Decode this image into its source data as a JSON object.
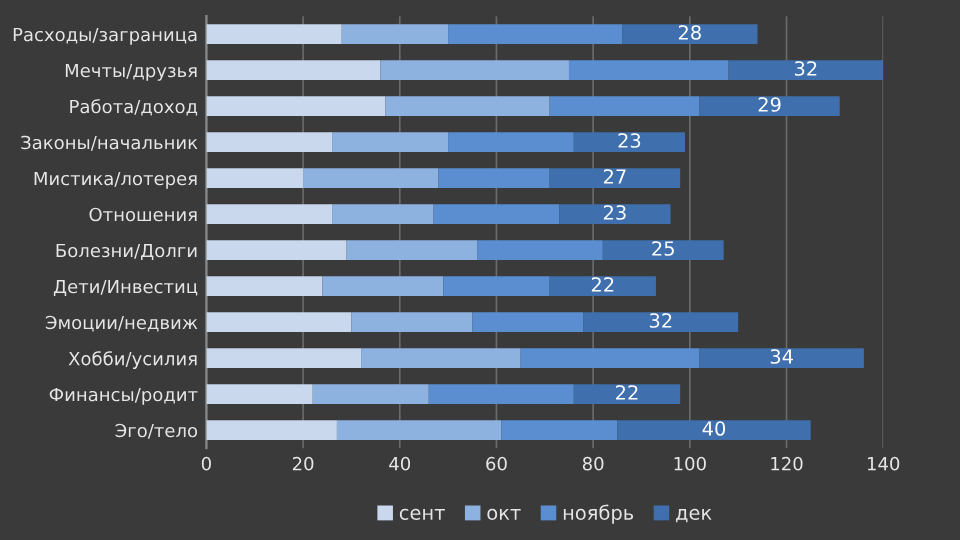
{
  "chart_data": {
    "type": "bar",
    "orientation": "horizontal",
    "stacked": true,
    "categories": [
      "Расходы/заграница",
      "Мечты/друзья",
      "Работа/доход",
      "Законы/начальник",
      "Мистика/лотерея",
      "Отношения",
      "Болезни/Долги",
      "Дети/Инвестиц",
      "Эмоции/недвиж",
      "Хобби/усилия",
      "Финансы/родит",
      "Эго/тело"
    ],
    "series": [
      {
        "name": "сент",
        "color": "#c9d8ec",
        "values": [
          28,
          36,
          37,
          26,
          20,
          26,
          29,
          24,
          30,
          32,
          22,
          27
        ]
      },
      {
        "name": "окт",
        "color": "#8db2e0",
        "values": [
          22,
          39,
          34,
          24,
          28,
          21,
          27,
          25,
          25,
          33,
          24,
          34
        ]
      },
      {
        "name": "ноябрь",
        "color": "#5b8ed0",
        "values": [
          36,
          33,
          31,
          26,
          23,
          26,
          26,
          22,
          23,
          37,
          30,
          24
        ]
      },
      {
        "name": "дек",
        "color": "#3f70ad",
        "values": [
          28,
          32,
          29,
          23,
          27,
          23,
          25,
          22,
          32,
          34,
          22,
          40
        ],
        "value_labels": [
          "28",
          "32",
          "29",
          "23",
          "27",
          "23",
          "25",
          "22",
          "32",
          "34",
          "22",
          "40"
        ]
      }
    ],
    "xlim": [
      0,
      140
    ],
    "xticks": [
      0,
      20,
      40,
      60,
      80,
      100,
      120,
      140
    ],
    "grid": "x",
    "legend": "bottom"
  }
}
